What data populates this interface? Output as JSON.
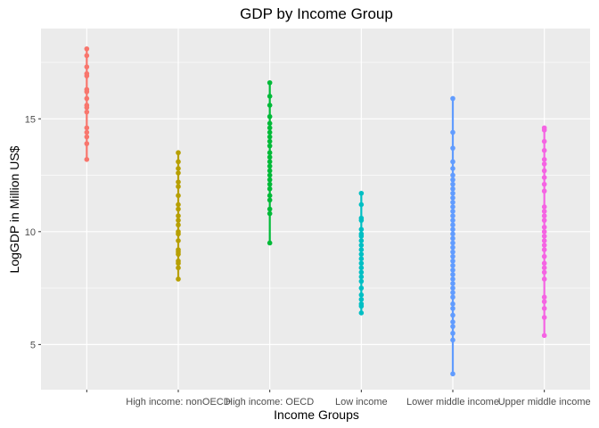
{
  "chart_data": {
    "type": "scatter",
    "title": "GDP by Income Group",
    "xlabel": "Income Groups",
    "ylabel": "LogGDP in Million US$",
    "ylim": [
      3.0,
      19.0
    ],
    "yticks": [
      5,
      10,
      15
    ],
    "grid": true,
    "background": "#ebebeb",
    "categories": [
      "",
      "High income: nonOECD",
      "High income: OECD",
      "Low income",
      "Lower middle income",
      "Upper middle income"
    ],
    "series": [
      {
        "color": "#f8766d",
        "values": [
          18.1,
          17.8,
          17.3,
          17.0,
          16.9,
          16.3,
          16.2,
          15.9,
          15.6,
          15.5,
          15.3,
          14.6,
          14.4,
          14.2,
          13.9,
          13.2
        ]
      },
      {
        "color": "#b79f00",
        "values": [
          13.5,
          13.1,
          12.8,
          12.6,
          12.2,
          12.0,
          11.6,
          11.2,
          11.0,
          10.7,
          10.5,
          10.3,
          10.0,
          9.9,
          9.6,
          9.2,
          9.1,
          9.0,
          8.7,
          8.6,
          8.4,
          7.9
        ]
      },
      {
        "color": "#00ba38",
        "values": [
          16.6,
          16.0,
          15.6,
          15.1,
          14.8,
          14.6,
          14.4,
          14.2,
          14.0,
          13.8,
          13.5,
          13.3,
          13.1,
          12.9,
          12.7,
          12.5,
          12.3,
          12.1,
          11.9,
          11.6,
          11.4,
          11.0,
          10.8,
          9.5
        ]
      },
      {
        "color": "#00bfc4",
        "values": [
          11.7,
          11.2,
          10.6,
          10.5,
          10.1,
          9.9,
          9.8,
          9.6,
          9.4,
          9.2,
          9.0,
          8.8,
          8.6,
          8.4,
          8.2,
          8.0,
          7.8,
          7.5,
          7.2,
          7.0,
          6.8,
          6.7,
          6.4
        ]
      },
      {
        "color": "#619cff",
        "values": [
          15.9,
          14.4,
          13.7,
          13.1,
          12.8,
          12.5,
          12.3,
          12.1,
          11.9,
          11.7,
          11.5,
          11.3,
          11.1,
          10.9,
          10.7,
          10.5,
          10.3,
          10.1,
          9.9,
          9.7,
          9.5,
          9.3,
          9.1,
          8.9,
          8.7,
          8.5,
          8.3,
          8.1,
          7.9,
          7.7,
          7.5,
          7.3,
          7.1,
          6.8,
          6.6,
          6.3,
          6.0,
          5.8,
          5.5,
          5.2,
          3.7
        ]
      },
      {
        "color": "#f564e3",
        "values": [
          14.6,
          14.5,
          14.0,
          13.6,
          13.2,
          13.0,
          12.7,
          12.4,
          12.1,
          11.8,
          11.1,
          10.9,
          10.7,
          10.5,
          10.2,
          10.0,
          9.8,
          9.6,
          9.4,
          9.2,
          8.9,
          8.6,
          8.4,
          8.2,
          7.9,
          7.1,
          6.9,
          6.6,
          6.2,
          5.4
        ]
      }
    ]
  }
}
